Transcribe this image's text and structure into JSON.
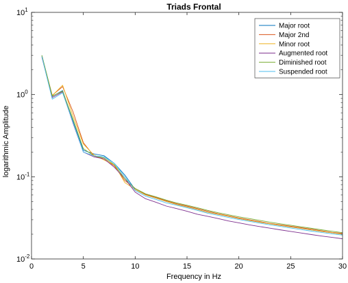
{
  "chart_data": {
    "type": "line",
    "title": "Triads Frontal",
    "xlabel": "Frequency in Hz",
    "ylabel": "logarithmic Amplitude",
    "xlim": [
      0,
      30
    ],
    "ylim": [
      0.01,
      10
    ],
    "yscale": "log",
    "grid": false,
    "legend_position": "top-right",
    "x_ticks": [
      "0",
      "5",
      "10",
      "15",
      "20",
      "25",
      "30"
    ],
    "y_ticks": [
      {
        "base": "10",
        "exp": "-2"
      },
      {
        "base": "10",
        "exp": "-1"
      },
      {
        "base": "10",
        "exp": "0"
      },
      {
        "base": "10",
        "exp": "1"
      }
    ],
    "x": [
      1,
      2,
      3,
      4,
      5,
      6,
      7,
      8,
      9,
      10,
      11,
      12,
      13,
      14,
      15,
      16,
      17,
      18,
      19,
      20,
      21,
      22,
      23,
      24,
      25,
      26,
      27,
      28,
      29,
      30
    ],
    "series": [
      {
        "name": "Major root",
        "color": "#0072BD",
        "values": [
          3.0,
          0.95,
          1.12,
          0.48,
          0.21,
          0.19,
          0.18,
          0.145,
          0.105,
          0.07,
          0.06,
          0.055,
          0.05,
          0.046,
          0.043,
          0.04,
          0.037,
          0.035,
          0.033,
          0.031,
          0.0295,
          0.028,
          0.0268,
          0.0256,
          0.0245,
          0.0235,
          0.0225,
          0.0216,
          0.0208,
          0.02
        ]
      },
      {
        "name": "Major 2nd",
        "color": "#D95319",
        "values": [
          2.9,
          0.98,
          1.25,
          0.62,
          0.26,
          0.18,
          0.165,
          0.135,
          0.09,
          0.072,
          0.061,
          0.056,
          0.051,
          0.047,
          0.044,
          0.041,
          0.038,
          0.0355,
          0.0335,
          0.0315,
          0.03,
          0.0285,
          0.027,
          0.026,
          0.025,
          0.024,
          0.023,
          0.022,
          0.021,
          0.0205
        ]
      },
      {
        "name": "Minor root",
        "color": "#EDB120",
        "values": [
          2.95,
          0.97,
          1.3,
          0.55,
          0.25,
          0.185,
          0.16,
          0.14,
          0.085,
          0.07,
          0.06,
          0.055,
          0.05,
          0.046,
          0.043,
          0.04,
          0.037,
          0.035,
          0.033,
          0.031,
          0.0295,
          0.028,
          0.0268,
          0.0256,
          0.0245,
          0.0235,
          0.0225,
          0.0216,
          0.0208,
          0.02
        ]
      },
      {
        "name": "Augmented root",
        "color": "#7E2F8E",
        "values": [
          2.85,
          0.92,
          1.08,
          0.45,
          0.2,
          0.175,
          0.165,
          0.13,
          0.095,
          0.065,
          0.054,
          0.049,
          0.044,
          0.041,
          0.038,
          0.035,
          0.033,
          0.031,
          0.029,
          0.0275,
          0.026,
          0.0248,
          0.0237,
          0.0226,
          0.0216,
          0.0207,
          0.0198,
          0.019,
          0.0183,
          0.0176
        ]
      },
      {
        "name": "Diminished root",
        "color": "#77AC30",
        "values": [
          3.0,
          0.96,
          1.1,
          0.5,
          0.22,
          0.18,
          0.17,
          0.14,
          0.095,
          0.072,
          0.062,
          0.057,
          0.052,
          0.048,
          0.045,
          0.042,
          0.039,
          0.0365,
          0.0345,
          0.0325,
          0.031,
          0.0295,
          0.028,
          0.0268,
          0.0257,
          0.0246,
          0.0236,
          0.0226,
          0.0217,
          0.0209
        ]
      },
      {
        "name": "Suspended root",
        "color": "#4DBEEE",
        "values": [
          2.9,
          0.88,
          1.05,
          0.46,
          0.2,
          0.18,
          0.175,
          0.145,
          0.1,
          0.068,
          0.058,
          0.053,
          0.048,
          0.045,
          0.042,
          0.039,
          0.036,
          0.034,
          0.032,
          0.0302,
          0.0287,
          0.0273,
          0.026,
          0.0249,
          0.0238,
          0.0228,
          0.0218,
          0.021,
          0.0202,
          0.0195
        ]
      }
    ]
  }
}
